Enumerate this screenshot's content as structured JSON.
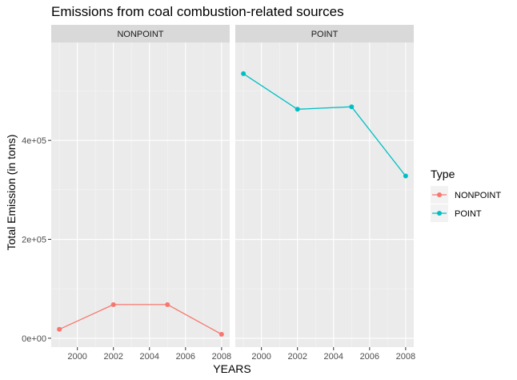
{
  "chart_data": {
    "type": "line",
    "title": "Emissions from coal combustion-related sources",
    "xlabel": "YEARS",
    "ylabel": "Total Emission (in tons)",
    "x": [
      1999,
      2002,
      2005,
      2008
    ],
    "xlim": [
      1998.55,
      2008.45
    ],
    "ylim": [
      -18000,
      598000
    ],
    "xticks": [
      2000,
      2002,
      2004,
      2006,
      2008
    ],
    "xtick_labels": [
      "2000",
      "2002",
      "2004",
      "2006",
      "2008"
    ],
    "yticks": [
      0,
      200000,
      400000
    ],
    "ytick_labels": [
      "0e+00",
      "2e+05",
      "4e+05"
    ],
    "grid": true,
    "legend": {
      "title": "Type",
      "placement": "right",
      "entries": [
        "NONPOINT",
        "POINT"
      ]
    },
    "series": [
      {
        "name": "NONPOINT",
        "panel": "NONPOINT",
        "color": "#F8766D",
        "values": [
          18000,
          68000,
          68000,
          8000
        ]
      },
      {
        "name": "POINT",
        "panel": "POINT",
        "color": "#00BFC4",
        "values": [
          535000,
          463000,
          468000,
          328000
        ]
      }
    ],
    "panels": [
      "NONPOINT",
      "POINT"
    ]
  }
}
